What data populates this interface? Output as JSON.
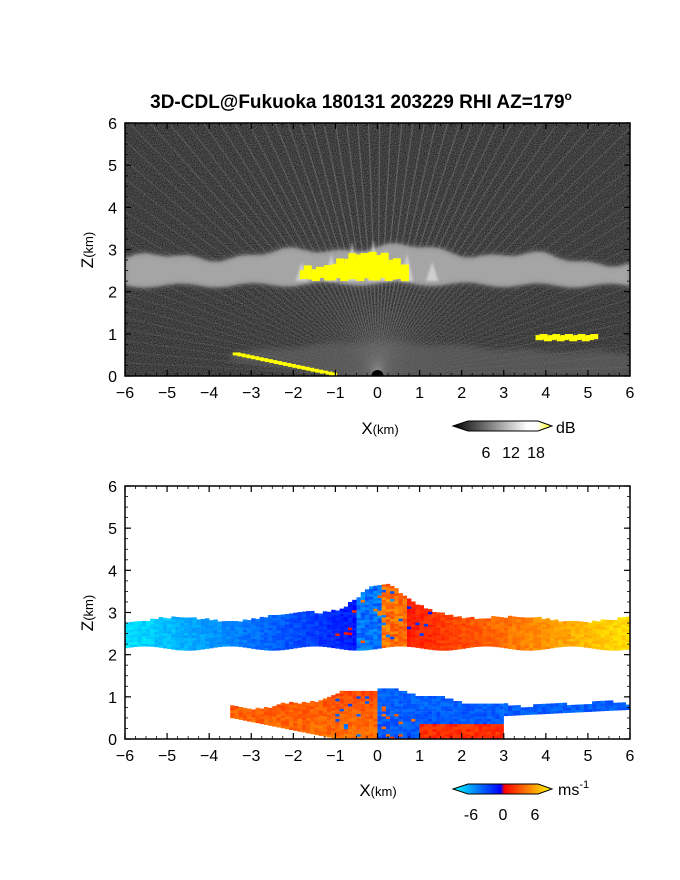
{
  "title_main": "3D-CDL@Fukuoka 180131 203229 RHI AZ=179",
  "title_deg": "o",
  "chart_data": [
    {
      "type": "heatmap",
      "xlabel": "X",
      "xlabel_unit": "(km)",
      "ylabel": "Z",
      "ylabel_unit": "(km)",
      "xlim": [
        -6,
        6
      ],
      "ylim": [
        0,
        6
      ],
      "xticks": [
        "-6",
        "-5",
        "-4",
        "-3",
        "-2",
        "-1",
        "0",
        "1",
        "2",
        "3",
        "4",
        "5",
        "6"
      ],
      "yticks": [
        "0",
        "1",
        "2",
        "3",
        "4",
        "5",
        "6"
      ],
      "quantity": "backscatter intensity",
      "colorbar": {
        "ticks": [
          "6",
          "12",
          "18"
        ],
        "unit": "dB",
        "range": [
          0,
          22
        ],
        "colors": [
          "#000000",
          "#ffffff",
          "#ffff00"
        ]
      },
      "layers": [
        {
          "name_hint": "upper layer",
          "z_base": 2.2,
          "z_top": 2.8,
          "x_range": [
            -6,
            6
          ]
        },
        {
          "name_hint": "lower layer",
          "z_base": 0.0,
          "z_top": 0.9,
          "x_range": [
            -3.5,
            6
          ]
        }
      ],
      "saturated_regions": [
        {
          "x": [
            -1.8,
            0.7
          ],
          "z": [
            2.3,
            3.2
          ]
        },
        {
          "x": [
            -3.4,
            -1.0
          ],
          "z": [
            0.0,
            0.5
          ]
        },
        {
          "x": [
            3.8,
            5.2
          ],
          "z": [
            0.85,
            1.1
          ]
        }
      ]
    },
    {
      "type": "heatmap",
      "xlabel": "X",
      "xlabel_unit": "(km)",
      "ylabel": "Z",
      "ylabel_unit": "(km)",
      "xlim": [
        -6,
        6
      ],
      "ylim": [
        0,
        6
      ],
      "xticks": [
        "-6",
        "-5",
        "-4",
        "-3",
        "-2",
        "-1",
        "0",
        "1",
        "2",
        "3",
        "4",
        "5",
        "6"
      ],
      "yticks": [
        "0",
        "1",
        "2",
        "3",
        "4",
        "5",
        "6"
      ],
      "quantity": "radial velocity",
      "colorbar": {
        "ticks": [
          "-6",
          "0",
          "6"
        ],
        "unit": "ms",
        "unit_sup": "-1",
        "range": [
          -9,
          9
        ],
        "colors": [
          "#00ffff",
          "#0000ff",
          "#ff0000",
          "#ffff00"
        ]
      },
      "layers": [
        {
          "name_hint": "upper layer",
          "z_base": 2.2,
          "z_top": 2.8,
          "x_range": [
            -6,
            6
          ],
          "velocity_at_left": -8,
          "velocity_at_right": 8
        },
        {
          "name_hint": "lower layer",
          "z_base": 0.0,
          "z_top": 1.2,
          "x_range": [
            -3.5,
            6
          ],
          "velocity_at_left": 4,
          "velocity_at_right": -3
        }
      ]
    }
  ]
}
